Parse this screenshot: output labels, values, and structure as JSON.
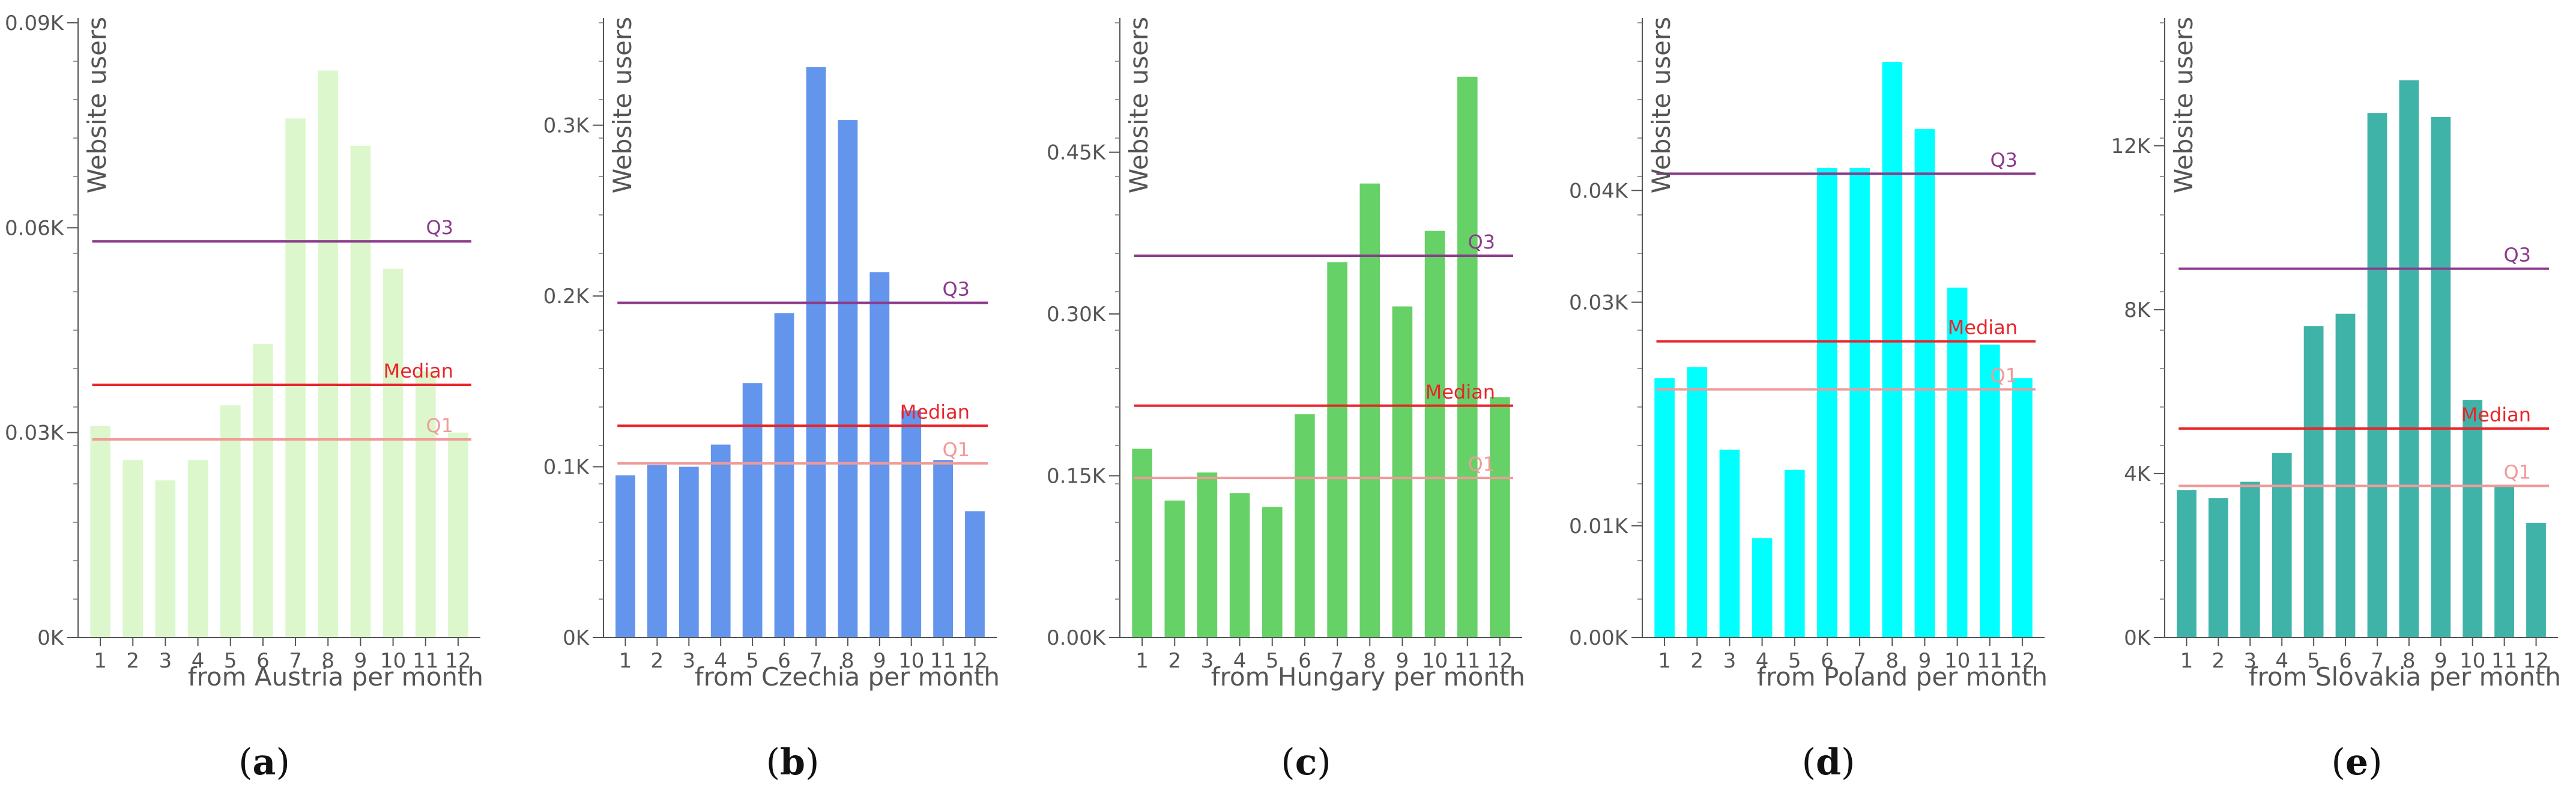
{
  "figure": {
    "panels": [
      {
        "label": "(a)",
        "letter": "a"
      },
      {
        "label": "(b)",
        "letter": "b"
      },
      {
        "label": "(c)",
        "letter": "c"
      },
      {
        "label": "(d)",
        "letter": "d"
      },
      {
        "label": "(e)",
        "letter": "e"
      }
    ]
  },
  "chart_data": [
    {
      "type": "bar",
      "panel": "(a)",
      "title": "",
      "ylabel": "Website users",
      "xlabel": "from Austria per month",
      "categories": [
        "1",
        "2",
        "3",
        "4",
        "5",
        "6",
        "7",
        "8",
        "9",
        "10",
        "11",
        "12"
      ],
      "values": [
        0.031,
        0.026,
        0.023,
        0.026,
        0.034,
        0.043,
        0.076,
        0.083,
        0.072,
        0.054,
        0.039,
        0.03
      ],
      "unit": "K",
      "ylim": [
        0,
        0.09
      ],
      "yticks": [
        0,
        0.03,
        0.06,
        0.09
      ],
      "ytick_labels": [
        "0K",
        "0.03K",
        "0.06K",
        "0.09K"
      ],
      "bar_color": "#dcf7cc",
      "reference_lines": [
        {
          "name": "Q3",
          "value": 0.058,
          "color": "#8b3a8b"
        },
        {
          "name": "Median",
          "value": 0.037,
          "color": "#e8252b"
        },
        {
          "name": "Q1",
          "value": 0.029,
          "color": "#f09a9a"
        }
      ]
    },
    {
      "type": "bar",
      "panel": "(b)",
      "title": "",
      "ylabel": "Website users",
      "xlabel": "from Czechia per month",
      "categories": [
        "1",
        "2",
        "3",
        "4",
        "5",
        "6",
        "7",
        "8",
        "9",
        "10",
        "11",
        "12"
      ],
      "values": [
        0.095,
        0.101,
        0.1,
        0.113,
        0.149,
        0.19,
        0.334,
        0.303,
        0.214,
        0.133,
        0.104,
        0.074
      ],
      "unit": "K",
      "ylim": [
        0,
        0.36
      ],
      "yticks": [
        0,
        0.1,
        0.2,
        0.3
      ],
      "ytick_labels": [
        "0K",
        "0.1K",
        "0.2K",
        "0.3K"
      ],
      "bar_color": "#6495ed",
      "reference_lines": [
        {
          "name": "Q3",
          "value": 0.196,
          "color": "#8b3a8b"
        },
        {
          "name": "Median",
          "value": 0.124,
          "color": "#e8252b"
        },
        {
          "name": "Q1",
          "value": 0.102,
          "color": "#f09a9a"
        }
      ]
    },
    {
      "type": "bar",
      "panel": "(c)",
      "title": "",
      "ylabel": "Website users",
      "xlabel": "from Hungary per month",
      "categories": [
        "1",
        "2",
        "3",
        "4",
        "5",
        "6",
        "7",
        "8",
        "9",
        "10",
        "11",
        "12"
      ],
      "values": [
        0.175,
        0.127,
        0.153,
        0.134,
        0.121,
        0.207,
        0.348,
        0.421,
        0.307,
        0.377,
        0.52,
        0.223
      ],
      "unit": "K",
      "ylim": [
        0,
        0.57
      ],
      "yticks": [
        0,
        0.15,
        0.3,
        0.45
      ],
      "ytick_labels": [
        "0.00K",
        "0.15K",
        "0.30K",
        "0.45K"
      ],
      "bar_color": "#66d166",
      "reference_lines": [
        {
          "name": "Q3",
          "value": 0.354,
          "color": "#8b3a8b"
        },
        {
          "name": "Median",
          "value": 0.215,
          "color": "#e8252b"
        },
        {
          "name": "Q1",
          "value": 0.148,
          "color": "#f09a9a"
        }
      ]
    },
    {
      "type": "bar",
      "panel": "(d)",
      "title": "",
      "ylabel": "Website users",
      "xlabel": "from Poland per month",
      "categories": [
        "1",
        "2",
        "3",
        "4",
        "5",
        "6",
        "7",
        "8",
        "9",
        "10",
        "11",
        "12"
      ],
      "values": [
        0.0232,
        0.0242,
        0.0168,
        0.0089,
        0.015,
        0.042,
        0.042,
        0.0515,
        0.0455,
        0.0313,
        0.0262,
        0.0232
      ],
      "unit": "K",
      "ylim": [
        0,
        0.055
      ],
      "yticks": [
        0,
        0.01,
        0.03,
        0.04
      ],
      "ytick_labels": [
        "0.00K",
        "0.01K",
        "0.03K",
        "0.04K"
      ],
      "bar_color": "#00ffff",
      "reference_lines": [
        {
          "name": "Q3",
          "value": 0.0415,
          "color": "#8b3a8b"
        },
        {
          "name": "Median",
          "value": 0.0265,
          "color": "#e8252b"
        },
        {
          "name": "Q1",
          "value": 0.0222,
          "color": "#f09a9a"
        }
      ]
    },
    {
      "type": "bar",
      "panel": "(e)",
      "title": "",
      "ylabel": "Website users",
      "xlabel": "from Slovakia per month",
      "categories": [
        "1",
        "2",
        "3",
        "4",
        "5",
        "6",
        "7",
        "8",
        "9",
        "10",
        "11",
        "12"
      ],
      "values": [
        3.6,
        3.4,
        3.8,
        4.5,
        7.6,
        7.9,
        12.8,
        13.6,
        12.7,
        5.8,
        3.7,
        2.8
      ],
      "unit": "K",
      "ylim": [
        0,
        15
      ],
      "yticks": [
        0,
        4,
        8,
        12
      ],
      "ytick_labels": [
        "0K",
        "4K",
        "8K",
        "12K"
      ],
      "bar_color": "#40b3a8",
      "reference_lines": [
        {
          "name": "Q3",
          "value": 9.0,
          "color": "#8b3a8b"
        },
        {
          "name": "Median",
          "value": 5.1,
          "color": "#e8252b"
        },
        {
          "name": "Q1",
          "value": 3.7,
          "color": "#f09a9a"
        }
      ]
    }
  ]
}
